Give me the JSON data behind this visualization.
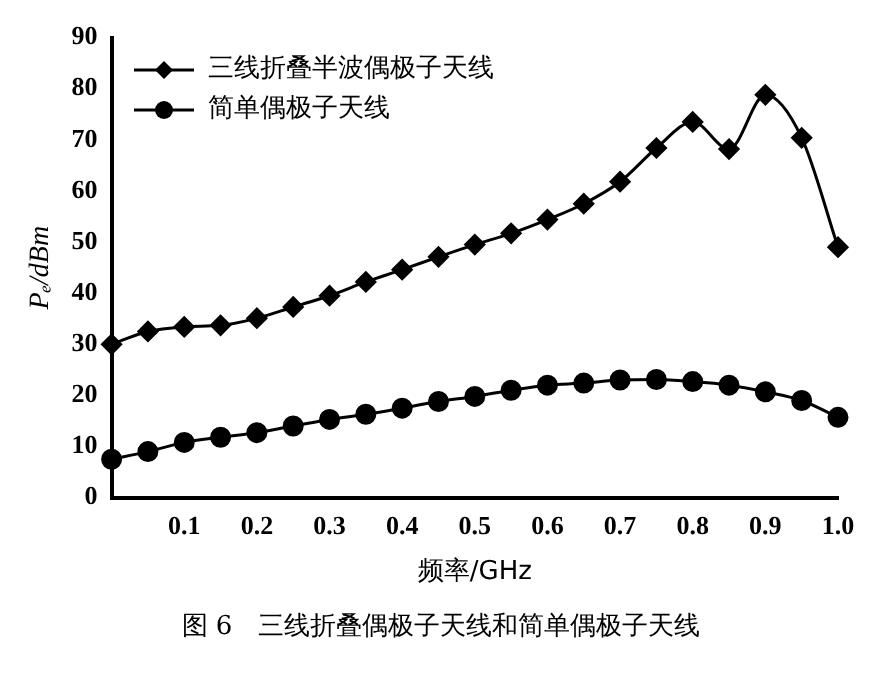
{
  "chart_data": {
    "type": "line",
    "xlabel": "频率/GHz",
    "ylabel": "Pₑ/dBm",
    "x": [
      0,
      0.05,
      0.1,
      0.15,
      0.2,
      0.25,
      0.3,
      0.35,
      0.4,
      0.45,
      0.5,
      0.55,
      0.6,
      0.65,
      0.7,
      0.75,
      0.8,
      0.85,
      0.9,
      0.95,
      1.0
    ],
    "series": [
      {
        "name": "三线折叠半波偶极子天线",
        "color": "#000000",
        "marker": "diamond",
        "values": [
          30,
          32.5,
          33.4,
          33.7,
          35.1,
          37.3,
          39.5,
          42.2,
          44.6,
          47.1,
          49.5,
          51.7,
          54.4,
          57.5,
          61.8,
          68.4,
          73.5,
          68.2,
          78.8,
          70.4,
          49
        ]
      },
      {
        "name": "简单偶极子天线",
        "color": "#000000",
        "marker": "circle",
        "values": [
          7.5,
          9,
          10.8,
          11.8,
          12.7,
          14,
          15.3,
          16.3,
          17.5,
          18.8,
          19.8,
          21,
          22,
          22.4,
          23,
          23.1,
          22.7,
          22,
          20.7,
          19,
          15.7
        ]
      }
    ],
    "xlim": [
      0,
      1.0
    ],
    "xticks": [
      0.1,
      0.2,
      0.3,
      0.4,
      0.5,
      0.6,
      0.7,
      0.8,
      0.9,
      {
        "value": 1,
        "label": "1.0"
      }
    ],
    "ylim": [
      0,
      90
    ],
    "yticks": [
      0,
      10,
      20,
      30,
      40,
      50,
      60,
      70,
      80,
      90
    ],
    "grid": false,
    "legend": "top left",
    "line_style": "solid",
    "annotations": [
      "图 6　三线折叠偶极子天线和简单偶极子天线"
    ]
  }
}
